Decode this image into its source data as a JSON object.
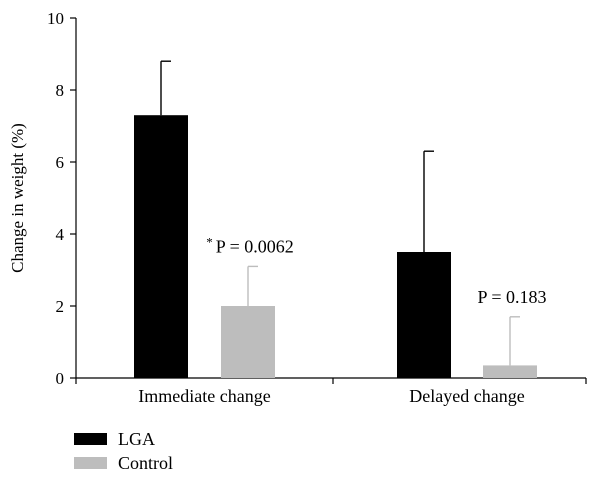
{
  "chart_data": {
    "type": "bar",
    "categories": [
      "Immediate change",
      "Delayed change"
    ],
    "series": [
      {
        "name": "LGA",
        "color": "#000000",
        "values": [
          7.3,
          3.5
        ],
        "error_upper": [
          8.8,
          6.3
        ]
      },
      {
        "name": "Control",
        "color": "#bdbdbd",
        "values": [
          2.0,
          0.35
        ],
        "error_upper": [
          3.1,
          1.7
        ]
      }
    ],
    "ylabel": "Change in weight (%)",
    "xlabel": "",
    "ylim": [
      0,
      10
    ],
    "yticks": [
      "0",
      "2",
      "4",
      "6",
      "8",
      "10"
    ],
    "grid": false,
    "legend_placement": "bottom-left",
    "annotations": [
      {
        "category": "Immediate change",
        "series": "Control",
        "prefix": "*",
        "text": "P = 0.0062"
      },
      {
        "category": "Delayed change",
        "series": "Control",
        "prefix": "",
        "text": "P = 0.183"
      }
    ]
  }
}
